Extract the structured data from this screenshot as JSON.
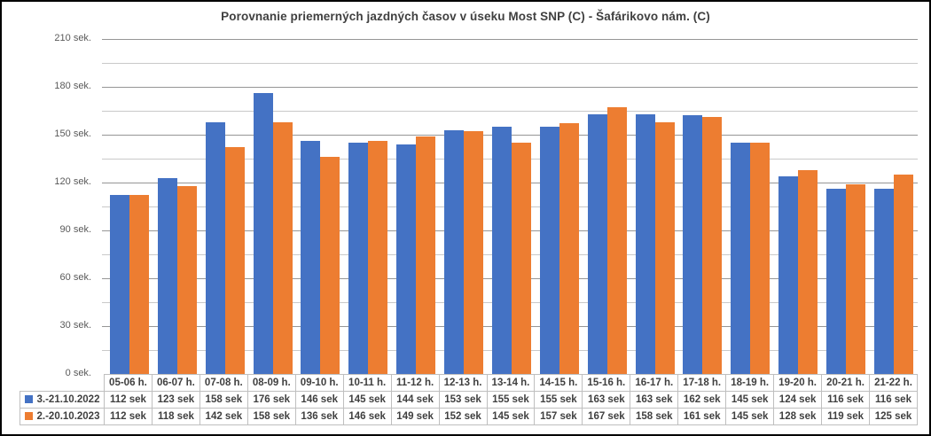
{
  "chart_data": {
    "type": "bar",
    "title": "Porovnanie priemerných jazdných časov v úseku Most SNP (C) - Šafárikovo nám. (C)",
    "categories": [
      "05-06 h.",
      "06-07 h.",
      "07-08 h.",
      "08-09 h.",
      "09-10 h.",
      "10-11 h.",
      "11-12 h.",
      "12-13 h.",
      "13-14 h.",
      "14-15 h.",
      "15-16 h.",
      "16-17 h.",
      "17-18 h.",
      "18-19 h.",
      "19-20 h.",
      "20-21 h.",
      "21-22 h."
    ],
    "series": [
      {
        "name": "3.-21.10.2022",
        "color": "#4472C4",
        "values": [
          112,
          123,
          158,
          176,
          146,
          145,
          144,
          153,
          155,
          155,
          163,
          163,
          162,
          145,
          124,
          116,
          116
        ]
      },
      {
        "name": "2.-20.10.2023",
        "color": "#ED7D31",
        "values": [
          112,
          118,
          142,
          158,
          136,
          146,
          149,
          152,
          145,
          157,
          167,
          158,
          161,
          145,
          128,
          119,
          125
        ]
      }
    ],
    "value_suffix": " sek",
    "y_axis": {
      "min": 0,
      "max": 210,
      "major_step": 30,
      "minor_step": 15,
      "tick_labels": [
        "0 sek.",
        "30 sek.",
        "60 sek.",
        "90 sek.",
        "120 sek.",
        "150 sek.",
        "180 sek.",
        "210 sek."
      ]
    },
    "grid": true,
    "legend_position": "table-left",
    "xlabel": "",
    "ylabel": ""
  },
  "colors": {
    "series_2022": "#4472C4",
    "series_2023": "#ED7D31",
    "grid_major": "#969696",
    "grid_minor": "#C9C9C9",
    "table_border": "#BFBFBF",
    "title_text": "#404040",
    "axis_text": "#595959",
    "frame": "#000000",
    "background": "#FFFFFF"
  }
}
